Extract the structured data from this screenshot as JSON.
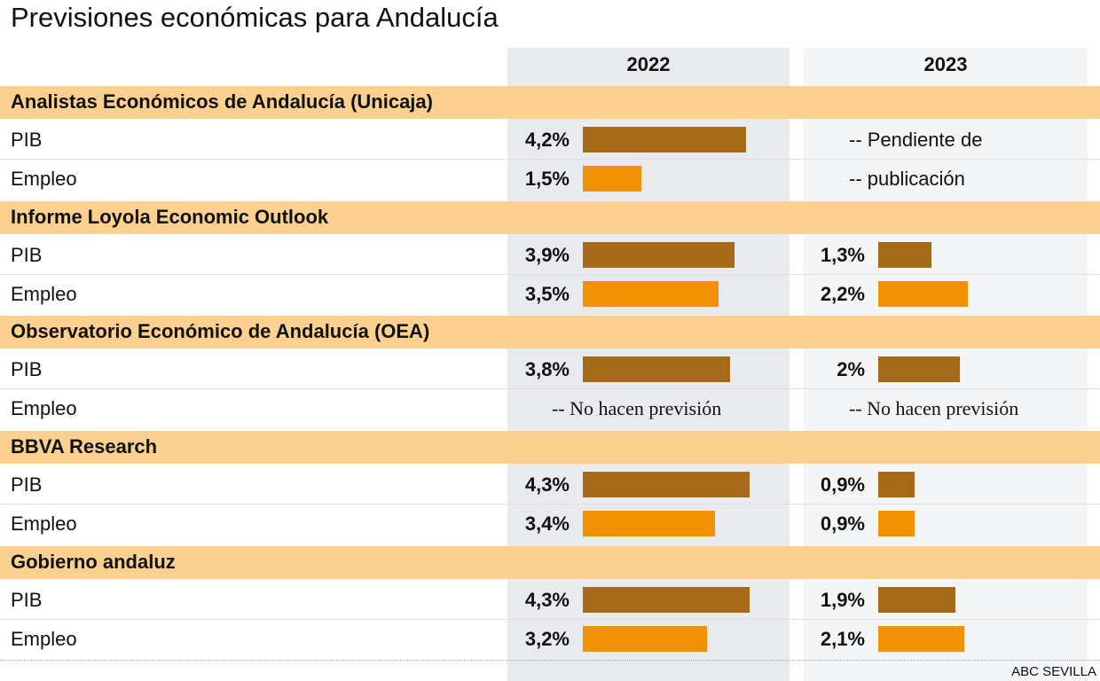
{
  "title": "Previsiones económicas para Andalucía",
  "source": "ABC SEVILLA",
  "chart_data": {
    "type": "bar",
    "columns": [
      "2022",
      "2023"
    ],
    "colors": {
      "PIB": "#a56a17",
      "Empleo": "#f29104",
      "section_band": "#fcd18f"
    },
    "groups": [
      {
        "name": "Analistas Económicos de Andalucía (Unicaja)",
        "rows": [
          {
            "label": "PIB",
            "values": [
              4.2,
              null
            ],
            "texts": [
              "4,2%",
              "-- Pendiente de"
            ]
          },
          {
            "label": "Empleo",
            "values": [
              1.5,
              null
            ],
            "texts": [
              "1,5%",
              "-- publicación"
            ]
          }
        ]
      },
      {
        "name": "Informe Loyola Economic Outlook",
        "rows": [
          {
            "label": "PIB",
            "values": [
              3.9,
              1.3
            ],
            "texts": [
              "3,9%",
              "1,3%"
            ]
          },
          {
            "label": "Empleo",
            "values": [
              3.5,
              2.2
            ],
            "texts": [
              "3,5%",
              "2,2%"
            ]
          }
        ]
      },
      {
        "name": "Observatorio Económico de Andalucía (OEA)",
        "rows": [
          {
            "label": "PIB",
            "values": [
              3.8,
              2
            ],
            "texts": [
              "3,8%",
              "2%"
            ]
          },
          {
            "label": "Empleo",
            "values": [
              null,
              null
            ],
            "texts": [
              "-- No hacen previsión",
              "-- No hacen previsión"
            ]
          }
        ]
      },
      {
        "name": "BBVA Research",
        "rows": [
          {
            "label": "PIB",
            "values": [
              4.3,
              0.9
            ],
            "texts": [
              "4,3%",
              "0,9%"
            ]
          },
          {
            "label": "Empleo",
            "values": [
              3.4,
              0.9
            ],
            "texts": [
              "3,4%",
              "0,9%"
            ]
          }
        ]
      },
      {
        "name": "Gobierno andaluz",
        "rows": [
          {
            "label": "PIB",
            "values": [
              4.3,
              1.9
            ],
            "texts": [
              "4,3%",
              "1,9%"
            ]
          },
          {
            "label": "Empleo",
            "values": [
              3.2,
              2.1
            ],
            "texts": [
              "3,2%",
              "2,1%"
            ]
          }
        ]
      }
    ]
  }
}
